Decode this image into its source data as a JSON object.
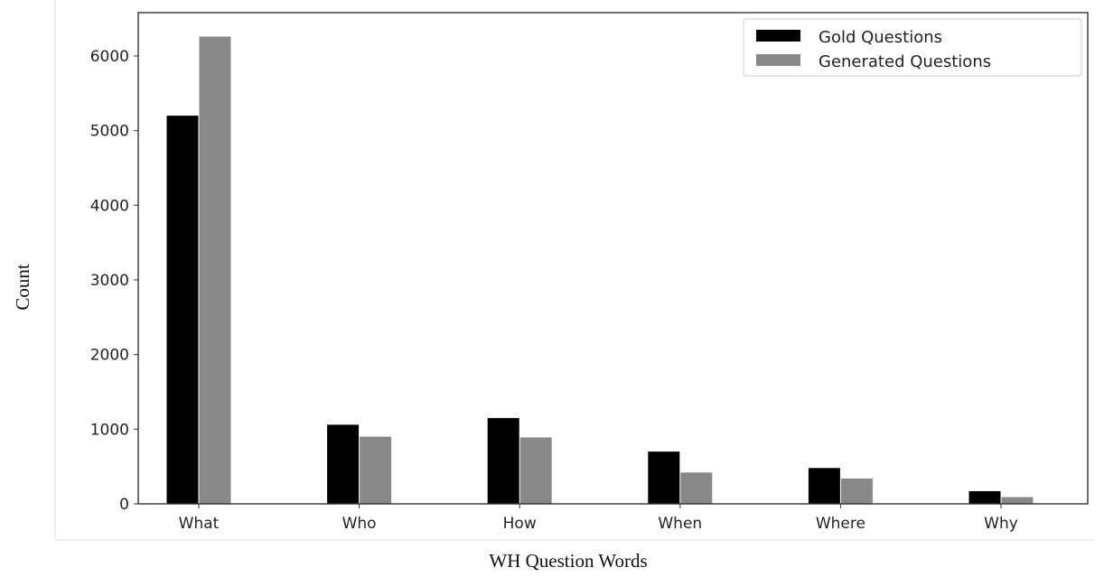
{
  "chart_data": {
    "type": "bar",
    "title": "",
    "xlabel": "WH Question Words",
    "ylabel": "Count",
    "categories": [
      "What",
      "Who",
      "How",
      "When",
      "Where",
      "Why"
    ],
    "series": [
      {
        "name": "Gold Questions",
        "color": "#000000",
        "values": [
          5200,
          1060,
          1150,
          700,
          480,
          170
        ]
      },
      {
        "name": "Generated Questions",
        "color": "#888888",
        "values": [
          6260,
          900,
          890,
          420,
          340,
          90
        ]
      }
    ],
    "ylim": [
      0,
      6580
    ],
    "yticks": [
      0,
      1000,
      2000,
      3000,
      4000,
      5000,
      6000
    ],
    "grid": false,
    "legend_position": "top-right"
  }
}
